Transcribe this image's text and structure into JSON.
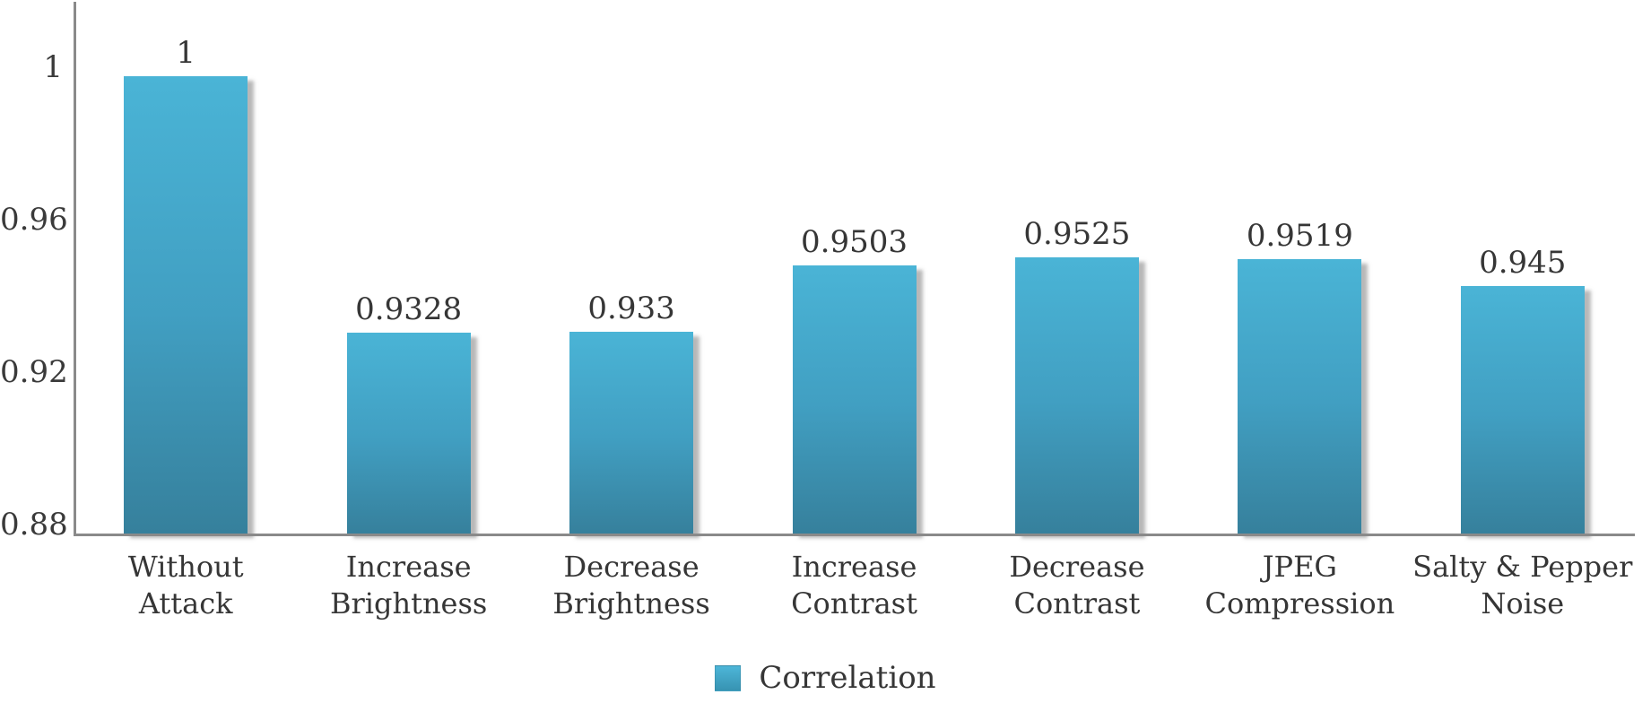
{
  "chart_data": {
    "type": "bar",
    "title": "",
    "xlabel": "",
    "ylabel": "",
    "categories": [
      "Without Attack",
      "Increase Brightness",
      "Decrease Brightness",
      "Increase Contrast",
      "Decrease Contrast",
      "JPEG Compression",
      "Salty & Pepper Noise"
    ],
    "category_lines": [
      [
        "Without",
        "Attack"
      ],
      [
        "Increase",
        "Brightness"
      ],
      [
        "Decrease",
        "Brightness"
      ],
      [
        "Increase",
        "Contrast"
      ],
      [
        "Decrease",
        "Contrast"
      ],
      [
        "JPEG",
        "Compression"
      ],
      [
        "Salty & Pepper",
        "Noise"
      ]
    ],
    "series": [
      {
        "name": "Correlation",
        "values": [
          1,
          0.9328,
          0.933,
          0.9503,
          0.9525,
          0.9519,
          0.945
        ],
        "value_labels": [
          "1",
          "0.9328",
          "0.933",
          "0.9503",
          "0.9525",
          "0.9519",
          "0.945"
        ]
      }
    ],
    "ylim": [
      0.88,
      1.02
    ],
    "yticks": [
      0.88,
      0.92,
      0.96,
      1
    ],
    "ytick_labels": [
      "0.88",
      "0.92",
      "0.96",
      "1"
    ],
    "grid": false,
    "legend_position": "bottom-center"
  },
  "legend": {
    "label": "Correlation"
  },
  "colors": {
    "bar_top": "#4ab4d6",
    "bar_mid": "#419fc2",
    "bar_bottom": "#36809c",
    "axis_line": "#8a8a8a",
    "text": "#363636",
    "shadow": "rgba(125,125,125,0.55)",
    "background": "#ffffff"
  }
}
